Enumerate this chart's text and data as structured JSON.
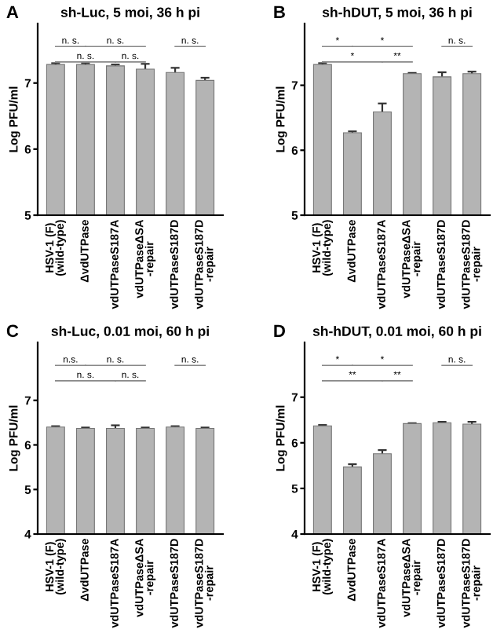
{
  "chart_data": [
    {
      "type": "bar",
      "title": "sh-Luc, 5 moi, 36 h pi",
      "ylabel": "Log PFU/ml",
      "categories": [
        "HSV-1 (F)\n(wild-type)",
        "ΔvdUTPase",
        "vdUTPaseS187A",
        "vdUTPaseΔSA\n-repair",
        "vdUTPaseS187D",
        "vdUTPaseS187D\n-repair"
      ],
      "values": [
        7.28,
        7.28,
        7.26,
        7.21,
        7.16,
        7.04
      ],
      "errors": [
        0.02,
        0.02,
        0.02,
        0.08,
        0.07,
        0.04
      ],
      "color": "#b4b4b4",
      "ylim": [
        5,
        7.9
      ],
      "yticks": [
        5,
        6,
        7
      ],
      "grid": false,
      "annotations": [
        "A",
        "n. s.",
        "n. s.",
        "n. s.",
        "n. s.",
        "n. s."
      ]
    },
    {
      "type": "bar",
      "title": "sh-hDUT, 5 moi, 36 h pi",
      "ylabel": "Log PFU/ml",
      "categories": [
        "HSV-1 (F)\n(wild-type)",
        "ΔvdUTPase",
        "vdUTPaseS187A",
        "vdUTPaseΔSA\n-repair",
        "vdUTPaseS187D",
        "vdUTPaseS187D\n-repair"
      ],
      "values": [
        7.32,
        6.27,
        6.59,
        7.18,
        7.13,
        7.18
      ],
      "errors": [
        0.02,
        0.02,
        0.13,
        0.01,
        0.07,
        0.03
      ],
      "color": "#b4b4b4",
      "ylim": [
        5,
        7.95
      ],
      "yticks": [
        5,
        6,
        7
      ],
      "grid": false,
      "annotations": [
        "B",
        "*",
        "*",
        "*",
        "**",
        "n. s."
      ]
    },
    {
      "type": "bar",
      "title": "sh-Luc, 0.01 moi, 60 h pi",
      "ylabel": "Log PFU/ml",
      "categories": [
        "HSV-1 (F)\n(wild-type)",
        "ΔvdUTPase",
        "vdUTPaseS187A",
        "vdUTPaseΔSA\n-repair",
        "vdUTPaseS187D",
        "vdUTPaseS187D\n-repair"
      ],
      "values": [
        6.4,
        6.37,
        6.37,
        6.37,
        6.4,
        6.37
      ],
      "errors": [
        0.02,
        0.02,
        0.07,
        0.02,
        0.02,
        0.02
      ],
      "color": "#b4b4b4",
      "ylim": [
        4,
        8.3
      ],
      "yticks": [
        4,
        5,
        6,
        7
      ],
      "grid": false,
      "annotations": [
        "C",
        "n.s.",
        "n. s.",
        "n. s.",
        "n. s.",
        "n. s."
      ]
    },
    {
      "type": "bar",
      "title": "sh-hDUT, 0.01 moi, 60 h pi",
      "ylabel": "Log PFU/ml",
      "categories": [
        "HSV-1 (F)\n(wild-type)",
        "ΔvdUTPase",
        "vdUTPaseS187A",
        "vdUTPaseΔSA\n-repair",
        "vdUTPaseS187D",
        "vdUTPaseS187D\n-repair"
      ],
      "values": [
        6.37,
        5.47,
        5.76,
        6.42,
        6.44,
        6.41
      ],
      "errors": [
        0.02,
        0.06,
        0.08,
        0.01,
        0.02,
        0.05
      ],
      "color": "#b4b4b4",
      "ylim": [
        4,
        8.2
      ],
      "yticks": [
        4,
        5,
        6,
        7
      ],
      "grid": false,
      "annotations": [
        "D",
        "*",
        "*",
        "**",
        "**",
        "n. s."
      ]
    }
  ]
}
